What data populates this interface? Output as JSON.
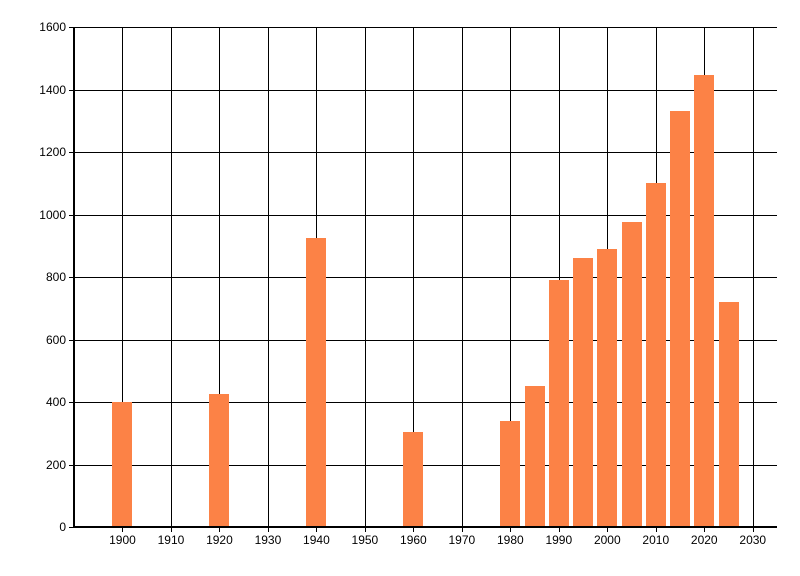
{
  "chart_data": {
    "type": "bar",
    "title": "",
    "xlabel": "",
    "ylabel": "",
    "x": [
      1900,
      1920,
      1940,
      1960,
      1980,
      1985,
      1990,
      1995,
      2000,
      2005,
      2010,
      2015,
      2020,
      2025
    ],
    "values": [
      400,
      425,
      925,
      305,
      340,
      450,
      790,
      860,
      890,
      975,
      1100,
      1330,
      1445,
      720
    ],
    "xlim": [
      1890,
      2035
    ],
    "ylim": [
      0,
      1600
    ],
    "x_ticks": [
      1900,
      1910,
      1920,
      1930,
      1940,
      1950,
      1960,
      1970,
      1980,
      1990,
      2000,
      2010,
      2020,
      2030
    ],
    "y_ticks": [
      0,
      200,
      400,
      600,
      800,
      1000,
      1200,
      1400,
      1600
    ],
    "grid": true,
    "legend": "none",
    "bar_color": "#fc8246",
    "axis_color": "#000000",
    "label_color": "#000000",
    "background_color": "#ffffff"
  }
}
